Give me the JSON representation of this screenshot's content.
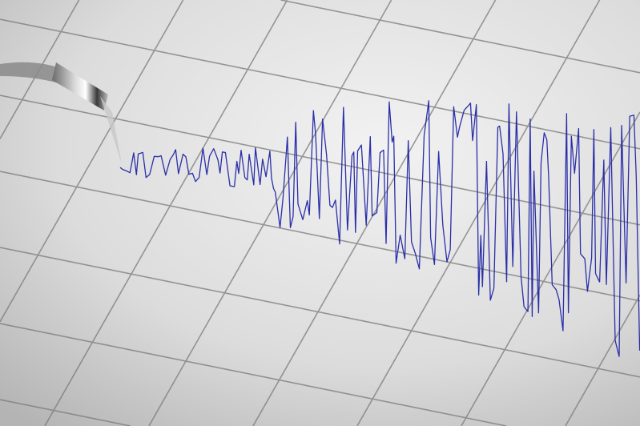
{
  "scene": {
    "subject": "seismograph",
    "colors": {
      "paper_light": "#efefef",
      "paper_dark": "#b9b9b9",
      "grid_line": "#7a7a7a",
      "trace": "#2a2fa8",
      "needle": "#9a9a9a"
    }
  }
}
